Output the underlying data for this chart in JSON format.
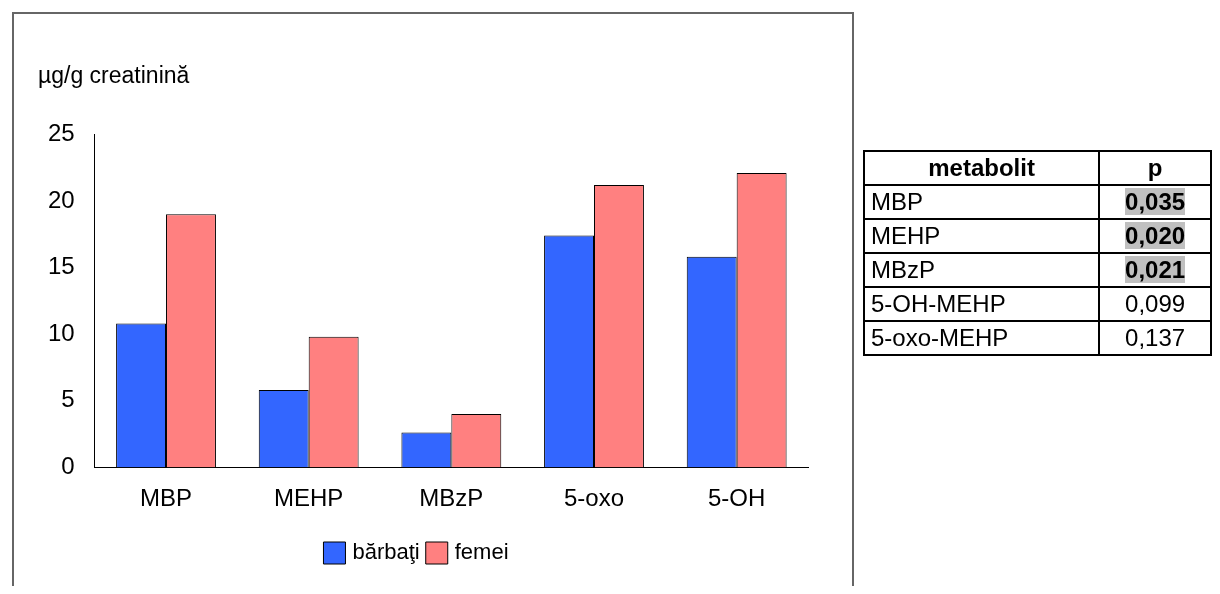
{
  "chart_data": [
    {
      "type": "bar",
      "ylabel": "µg/g creatinină",
      "categories": [
        "MBP",
        "MEHP",
        "MBzP",
        "5-oxo",
        "5-OH"
      ],
      "series": [
        {
          "name": "bărbaţi",
          "color": "#3366ff",
          "values": [
            10.8,
            5.8,
            2.6,
            17.4,
            15.8
          ]
        },
        {
          "name": "femei",
          "color": "#ff8080",
          "values": [
            19.0,
            9.8,
            4.0,
            21.2,
            22.1
          ]
        }
      ],
      "ylim": [
        0,
        25
      ],
      "yticks": [
        0,
        5,
        10,
        15,
        20,
        25
      ],
      "grid": false,
      "legend": "bottom"
    },
    {
      "type": "other",
      "annotations": [
        "metabolit",
        "p",
        "MBP",
        "0,035",
        "MEHP",
        "0,020",
        "MBzP",
        "0,021",
        "5-OH-MEHP",
        "0,099",
        "5-oxo-MEHP",
        "0,137"
      ]
    }
  ]
}
